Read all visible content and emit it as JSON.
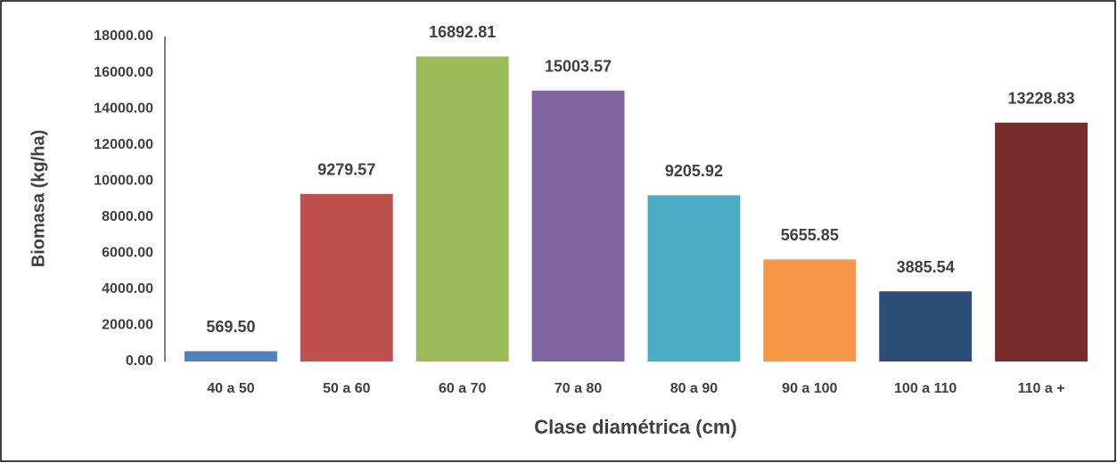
{
  "chart_data": {
    "type": "bar",
    "categories": [
      "40 a 50",
      "50 a 60",
      "60 a 70",
      "70 a 80",
      "80 a 90",
      "90 a 100",
      "100 a 110",
      "110 a +"
    ],
    "values": [
      569.5,
      9279.57,
      16892.81,
      15003.57,
      9205.92,
      5655.85,
      3885.54,
      13228.83
    ],
    "value_labels": [
      "569.50",
      "9279.57",
      "16892.81",
      "15003.57",
      "9205.92",
      "5655.85",
      "3885.54",
      "13228.83"
    ],
    "colors": [
      "#4f81bd",
      "#c0504d",
      "#9bbb59",
      "#8064a2",
      "#4bacc6",
      "#f79646",
      "#2c4d75",
      "#772c2a"
    ],
    "xlabel": "Clase diamétrica (cm)",
    "ylabel": "Biomasa (kg/ha)",
    "ylim": [
      0,
      18000
    ],
    "yticks": [
      {
        "value": 0,
        "label": "0.00"
      },
      {
        "value": 2000,
        "label": "2000.00"
      },
      {
        "value": 4000,
        "label": "4000.00"
      },
      {
        "value": 6000,
        "label": "6000.00"
      },
      {
        "value": 8000,
        "label": "8000.00"
      },
      {
        "value": 10000,
        "label": "10000.00"
      },
      {
        "value": 12000,
        "label": "12000.00"
      },
      {
        "value": 14000,
        "label": "14000.00"
      },
      {
        "value": 16000,
        "label": "16000.00"
      },
      {
        "value": 18000,
        "label": "18000.00"
      }
    ]
  }
}
